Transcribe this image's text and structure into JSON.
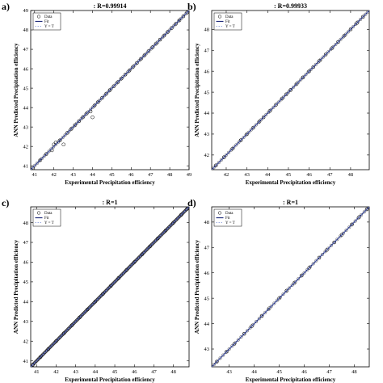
{
  "figure": {
    "xlabel": "Experimental Precipitation efficiency",
    "ylabel": "ANN Predicted Precipitation efficiency",
    "legend": [
      "Data",
      "Fit",
      "Y = T"
    ],
    "colors": {
      "data": "#000000",
      "fit": "#1f2a7a",
      "yt": "#7b8fd6",
      "axes": "#000000"
    }
  },
  "panels": [
    {
      "letter": "a)",
      "title": ": R=0.99914"
    },
    {
      "letter": "b)",
      "title": ": R=0.99933"
    },
    {
      "letter": "c)",
      "title": ": R=1"
    },
    {
      "letter": "d)",
      "title": ": R=1"
    }
  ],
  "chart_data": [
    {
      "type": "scatter",
      "title": ": R=0.99914",
      "xlabel": "Experimental Precipitation efficiency",
      "ylabel": "ANN Predicted Precipitation efficiency",
      "xlim": [
        40.8,
        49
      ],
      "ylim": [
        40.8,
        49
      ],
      "xticks": [
        41,
        42,
        43,
        44,
        45,
        46,
        47,
        48,
        49
      ],
      "yticks": [
        41,
        42,
        43,
        44,
        45,
        46,
        47,
        48,
        49
      ],
      "legend_position": "top-left",
      "series": [
        {
          "name": "Data",
          "kind": "points",
          "x": [
            41.3,
            41.6,
            41.9,
            42.0,
            42.1,
            42.3,
            42.5,
            42.7,
            42.9,
            43.1,
            43.3,
            43.5,
            43.7,
            43.9,
            44.0,
            44.1,
            44.3,
            44.5,
            44.7,
            44.9,
            45.1,
            45.3,
            45.5,
            45.7,
            45.9,
            46.1,
            46.3,
            46.5,
            46.7,
            46.9,
            47.1,
            47.3,
            47.5,
            47.7,
            47.9,
            48.1,
            48.3,
            48.5,
            48.7,
            48.9
          ],
          "y": [
            41.3,
            41.6,
            41.8,
            42.1,
            42.2,
            42.3,
            42.1,
            42.7,
            42.9,
            43.1,
            43.3,
            43.5,
            43.7,
            43.8,
            43.5,
            44.1,
            44.3,
            44.5,
            44.7,
            44.9,
            45.1,
            45.3,
            45.5,
            45.7,
            45.9,
            46.1,
            46.3,
            46.5,
            46.7,
            46.9,
            47.1,
            47.3,
            47.5,
            47.7,
            47.9,
            48.1,
            48.3,
            48.5,
            48.7,
            48.9
          ]
        },
        {
          "name": "Fit",
          "kind": "line",
          "x": [
            40.8,
            49
          ],
          "y": [
            40.8,
            49
          ]
        },
        {
          "name": "Y = T",
          "kind": "dotted-line",
          "x": [
            40.8,
            49
          ],
          "y": [
            40.8,
            49
          ]
        }
      ]
    },
    {
      "type": "scatter",
      "title": ": R=0.99933",
      "xlabel": "Experimental Precipitation efficiency",
      "ylabel": "ANN Predicted Precipitation efficiency",
      "xlim": [
        41.3,
        48.9
      ],
      "ylim": [
        41.3,
        48.9
      ],
      "xticks": [
        42,
        43,
        44,
        45,
        46,
        47,
        48
      ],
      "yticks": [
        42,
        43,
        44,
        45,
        46,
        47,
        48
      ],
      "legend_position": "top-left",
      "series": [
        {
          "name": "Data",
          "kind": "points",
          "x": [
            41.5,
            41.9,
            42.3,
            42.7,
            43.0,
            43.3,
            43.6,
            43.8,
            44.1,
            44.4,
            44.7,
            44.9,
            45.1,
            45.4,
            45.7,
            46.0,
            46.2,
            46.5,
            46.8,
            47.1,
            47.4,
            47.7,
            48.0,
            48.3,
            48.6
          ],
          "y": [
            41.5,
            41.9,
            42.3,
            42.7,
            43.0,
            43.3,
            43.6,
            43.8,
            44.1,
            44.4,
            44.7,
            44.9,
            45.1,
            45.4,
            45.7,
            46.0,
            46.2,
            46.5,
            46.8,
            47.1,
            47.4,
            47.7,
            48.0,
            48.3,
            48.6
          ]
        },
        {
          "name": "Fit",
          "kind": "line",
          "x": [
            41.3,
            48.9
          ],
          "y": [
            41.3,
            48.9
          ]
        },
        {
          "name": "Y = T",
          "kind": "dotted-line",
          "x": [
            41.3,
            48.9
          ],
          "y": [
            41.3,
            48.9
          ]
        }
      ]
    },
    {
      "type": "scatter",
      "title": ": R=1",
      "xlabel": "Experimental Precipitation efficiency",
      "ylabel": "ANN Predicted Precipitation efficiency",
      "xlim": [
        40.7,
        48.8
      ],
      "ylim": [
        40.7,
        48.8
      ],
      "xticks": [
        41,
        42,
        43,
        44,
        45,
        46,
        47,
        48
      ],
      "yticks": [
        41,
        42,
        43,
        44,
        45,
        46,
        47,
        48
      ],
      "legend_position": "top-left",
      "series": [
        {
          "name": "Data",
          "kind": "points",
          "x": [
            40.8,
            41.2,
            41.6,
            42.0,
            42.4,
            42.8,
            43.2,
            43.6,
            44.0,
            44.4,
            44.8,
            45.2,
            45.6,
            46.0,
            46.4,
            46.8,
            47.2,
            47.6,
            48.0,
            48.4,
            48.7
          ],
          "y": [
            40.8,
            41.2,
            41.6,
            42.0,
            42.4,
            42.8,
            43.2,
            43.6,
            44.0,
            44.4,
            44.8,
            45.2,
            45.6,
            46.0,
            46.4,
            46.8,
            47.2,
            47.6,
            48.0,
            48.4,
            48.7
          ]
        },
        {
          "name": "Fit",
          "kind": "line",
          "x": [
            40.7,
            48.8
          ],
          "y": [
            40.7,
            48.8
          ]
        },
        {
          "name": "Y = T",
          "kind": "dotted-line",
          "x": [
            40.7,
            48.8
          ],
          "y": [
            40.7,
            48.8
          ]
        }
      ]
    },
    {
      "type": "scatter",
      "title": ": R=1",
      "xlabel": "Experimental Precipitation efficiency",
      "ylabel": "ANN Predicted Precipitation efficiency",
      "xlim": [
        42.3,
        48.6
      ],
      "ylim": [
        42.3,
        48.6
      ],
      "xticks": [
        43,
        44,
        45,
        46,
        47,
        48
      ],
      "yticks": [
        43,
        44,
        45,
        46,
        47,
        48
      ],
      "legend_position": "top-left",
      "series": [
        {
          "name": "Data",
          "kind": "points",
          "x": [
            42.5,
            42.9,
            43.2,
            43.6,
            43.9,
            44.3,
            44.6,
            45.0,
            45.3,
            45.6,
            45.9,
            46.2,
            46.6,
            46.9,
            47.2,
            47.5,
            47.9,
            48.2,
            48.5
          ],
          "y": [
            42.5,
            42.9,
            43.2,
            43.6,
            43.9,
            44.3,
            44.6,
            45.0,
            45.3,
            45.6,
            45.9,
            46.2,
            46.6,
            46.9,
            47.2,
            47.5,
            47.9,
            48.2,
            48.5
          ]
        },
        {
          "name": "Fit",
          "kind": "line",
          "x": [
            42.3,
            48.6
          ],
          "y": [
            42.3,
            48.6
          ]
        },
        {
          "name": "Y = T",
          "kind": "dotted-line",
          "x": [
            42.3,
            48.6
          ],
          "y": [
            42.3,
            48.6
          ]
        }
      ]
    }
  ]
}
